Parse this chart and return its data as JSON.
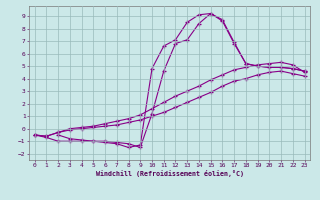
{
  "title": "",
  "xlabel": "Windchill (Refroidissement éolien,°C)",
  "bg_color": "#cbe8e8",
  "line_color": "#880088",
  "xlim": [
    -0.5,
    23.5
  ],
  "ylim": [
    -2.5,
    9.8
  ],
  "xticks": [
    0,
    1,
    2,
    3,
    4,
    5,
    6,
    7,
    8,
    9,
    10,
    11,
    12,
    13,
    14,
    15,
    16,
    17,
    18,
    19,
    20,
    21,
    22,
    23
  ],
  "yticks": [
    -2,
    -1,
    0,
    1,
    2,
    3,
    4,
    5,
    6,
    7,
    8,
    9
  ],
  "grid_color": "#99bbbb",
  "curve1_x": [
    0,
    1,
    2,
    3,
    4,
    5,
    6,
    7,
    8,
    9,
    10,
    11,
    12,
    13,
    14,
    15,
    16,
    17,
    18,
    19,
    20,
    21,
    22,
    23
  ],
  "curve1_y": [
    -0.5,
    -0.6,
    -0.3,
    0.0,
    0.1,
    0.2,
    0.4,
    0.6,
    0.8,
    1.1,
    1.6,
    2.1,
    2.6,
    3.0,
    3.4,
    3.9,
    4.3,
    4.7,
    4.9,
    5.1,
    5.2,
    5.3,
    5.1,
    4.5
  ],
  "curve2_x": [
    0,
    1,
    2,
    3,
    4,
    5,
    6,
    7,
    8,
    9,
    10,
    11,
    12,
    13,
    14,
    15,
    16,
    17,
    18,
    19,
    20,
    21,
    22,
    23
  ],
  "curve2_y": [
    -0.5,
    -0.6,
    -0.3,
    -0.1,
    0.0,
    0.1,
    0.2,
    0.3,
    0.5,
    0.7,
    1.0,
    1.3,
    1.7,
    2.1,
    2.5,
    2.9,
    3.4,
    3.8,
    4.0,
    4.3,
    4.5,
    4.6,
    4.4,
    4.2
  ],
  "curve3_x": [
    0,
    1,
    2,
    3,
    4,
    5,
    6,
    7,
    8,
    9,
    10,
    11,
    12,
    13,
    14,
    15,
    16,
    17,
    18,
    19,
    20,
    21,
    22,
    23
  ],
  "curve3_y": [
    -0.5,
    -0.7,
    -1.0,
    -1.0,
    -1.0,
    -1.0,
    -1.1,
    -1.2,
    -1.5,
    -1.3,
    4.8,
    6.6,
    7.1,
    8.5,
    9.1,
    9.2,
    8.7,
    6.9,
    5.2,
    5.0,
    4.9,
    4.9,
    4.8,
    4.6
  ],
  "curve4_x": [
    2,
    3,
    4,
    5,
    6,
    7,
    8,
    9,
    10,
    11,
    12,
    13,
    14,
    15,
    16,
    17,
    18,
    19,
    20,
    21,
    22,
    23
  ],
  "curve4_y": [
    -0.5,
    -0.8,
    -0.9,
    -1.0,
    -1.0,
    -1.1,
    -1.2,
    -1.5,
    1.2,
    4.6,
    6.8,
    7.1,
    8.4,
    9.2,
    8.6,
    6.8,
    5.2,
    5.0,
    4.9,
    4.9,
    4.8,
    4.6
  ]
}
